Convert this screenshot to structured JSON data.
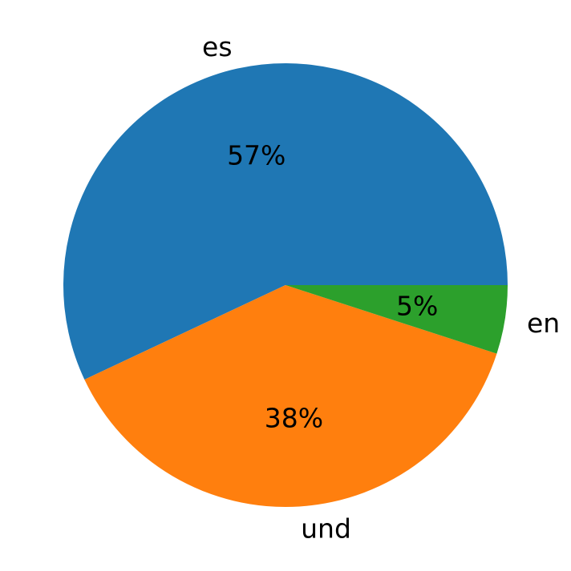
{
  "chart_data": {
    "type": "pie",
    "title": "",
    "start_angle_deg": 0,
    "direction": "counterclockwise",
    "slices": [
      {
        "label": "es",
        "value": 57,
        "pct_label": "57%",
        "color": "#1f77b4"
      },
      {
        "label": "und",
        "value": 38,
        "pct_label": "38%",
        "color": "#ff7f0e"
      },
      {
        "label": "en",
        "value": 5,
        "pct_label": "5%",
        "color": "#2ca02c"
      }
    ]
  }
}
